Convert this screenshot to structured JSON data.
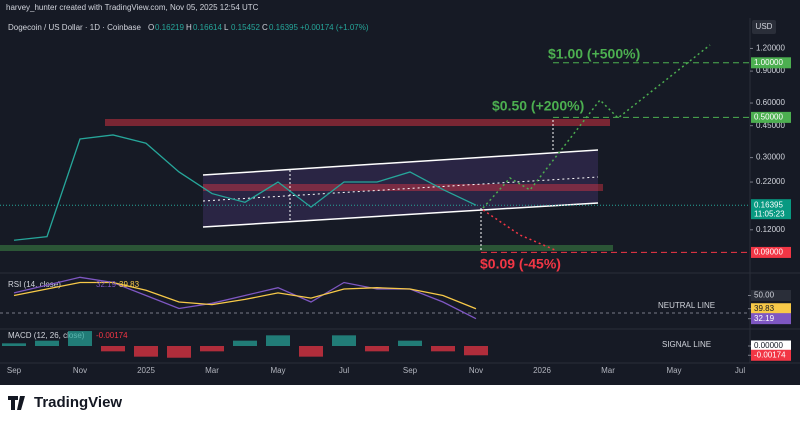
{
  "header": {
    "credit": "harvey_hunter created with TradingView.com, Nov 05, 2025 12:54 UTC"
  },
  "footer": {
    "brand": "TradingView"
  },
  "chart_data": [
    {
      "type": "line",
      "title": "Dogecoin / US Dollar · 1D · Coinbase",
      "currency": "USD",
      "ohlc": [
        {
          "label": "O",
          "value": 0.16219
        },
        {
          "label": "H",
          "value": 0.16614
        },
        {
          "label": "L",
          "value": 0.15452
        },
        {
          "label": "C",
          "value": 0.16395
        }
      ],
      "change": "+0.00174 (+1.07%)",
      "countdown": "11:05:23",
      "categories": [
        "Sep",
        null,
        "Nov",
        null,
        "2025",
        null,
        "Mar",
        null,
        "May",
        null,
        "Jul",
        null,
        "Sep",
        null,
        "Nov",
        null,
        "2026",
        null,
        "Mar",
        null,
        "May",
        null,
        "Jul"
      ],
      "series": [
        {
          "color": "#26a69a",
          "values": [
            0.105,
            0.11,
            0.38,
            0.4,
            0.36,
            0.25,
            0.19,
            0.17,
            0.22,
            0.16,
            0.22,
            0.22,
            0.25,
            0.2,
            0.16395,
            null,
            null,
            null,
            null,
            null,
            null,
            null,
            null
          ]
        }
      ],
      "log_scale": true,
      "ylim": [
        0.072,
        1.37
      ],
      "yticks": [
        {
          "value": 1.2,
          "label": "1.20000"
        },
        {
          "value": 0.9,
          "label": "0.90000"
        },
        {
          "value": 0.6,
          "label": "0.60000"
        },
        {
          "value": 0.45,
          "label": "0.45000"
        },
        {
          "value": 0.3,
          "label": "0.30000"
        },
        {
          "value": 0.22,
          "label": "0.22000"
        },
        {
          "value": 0.12,
          "label": "0.12000"
        }
      ],
      "levels": [
        {
          "value": 1,
          "label": "1.00000",
          "color": "#4caf50"
        },
        {
          "value": 0.5,
          "label": "0.50000",
          "color": "#4caf50"
        },
        {
          "value": 0.09,
          "label": "0.09000",
          "color": "#f23645"
        }
      ],
      "annotations": [
        {
          "text": "$1.00 (+500%)",
          "color": "#4caf50"
        },
        {
          "text": "$0.50 (+200%)",
          "color": "#4caf50"
        },
        {
          "text": "$0.09 (-45%)",
          "color": "#f23645"
        }
      ]
    },
    {
      "type": "line",
      "title": "RSI (14, close)",
      "ylim": [
        25,
        65
      ],
      "yticks": [
        {
          "value": 50,
          "label": "50.00"
        },
        {
          "value": 39.83,
          "label": "39.83"
        },
        {
          "value": 32.19,
          "label": "32.19"
        }
      ],
      "annotation": "NEUTRAL LINE",
      "series": [
        {
          "color": "#7e57c2",
          "values": [
            52,
            58,
            64,
            60,
            50,
            40,
            44,
            50,
            56,
            45,
            60,
            55,
            55,
            45,
            32.19,
            null,
            null,
            null,
            null,
            null,
            null,
            null,
            null
          ]
        },
        {
          "color": "#f7c948",
          "values": [
            50,
            55,
            60,
            60,
            54,
            45,
            43,
            47,
            52,
            48,
            55,
            56,
            55,
            50,
            39.83,
            null,
            null,
            null,
            null,
            null,
            null,
            null,
            null
          ]
        }
      ]
    },
    {
      "type": "bar",
      "title": "MACD (12, 26, close)",
      "ylim": [
        -0.003,
        0.003
      ],
      "yticks": [
        {
          "value": 0,
          "label": "0.00000"
        },
        {
          "value": -0.00174,
          "label": "-0.00174"
        }
      ],
      "annotation": "SIGNAL LINE",
      "values": [
        0.0005,
        0.001,
        0.0028,
        -0.001,
        -0.002,
        -0.0022,
        -0.001,
        0.001,
        0.002,
        -0.002,
        0.002,
        -0.001,
        0.001,
        -0.001,
        -0.00174,
        null,
        null,
        null,
        null,
        null,
        null,
        null,
        null
      ]
    }
  ]
}
